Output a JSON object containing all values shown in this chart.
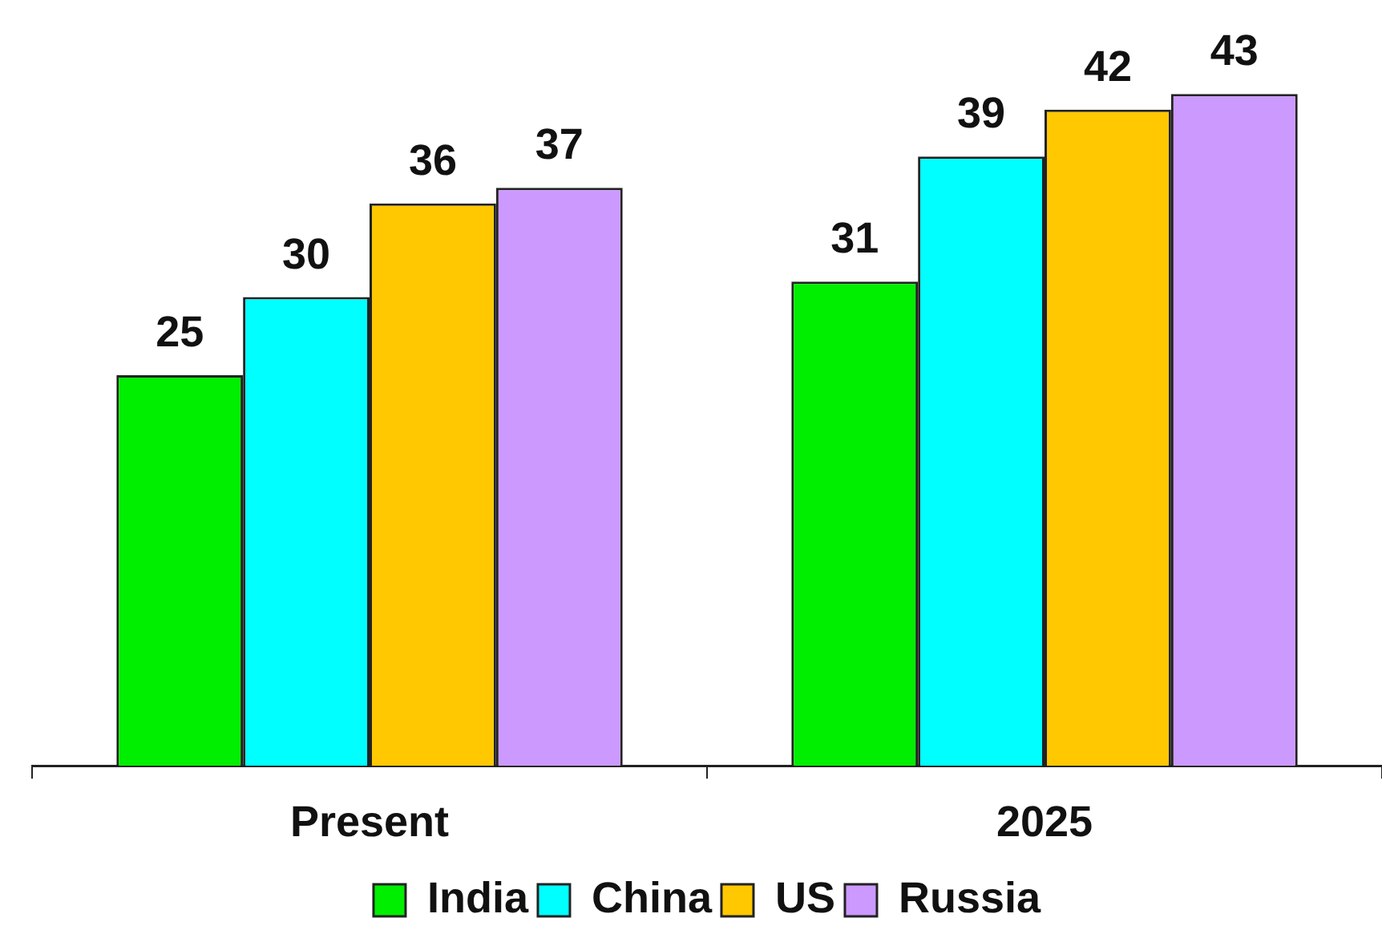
{
  "chart_data": {
    "type": "bar",
    "categories": [
      "Present",
      "2025"
    ],
    "series": [
      {
        "name": "India",
        "color": "#00ee00",
        "values": [
          25,
          31
        ]
      },
      {
        "name": "China",
        "color": "#00ffff",
        "values": [
          30,
          39
        ]
      },
      {
        "name": "US",
        "color": "#ffc800",
        "values": [
          36,
          42
        ]
      },
      {
        "name": "Russia",
        "color": "#cc99ff",
        "values": [
          37,
          43
        ]
      }
    ],
    "data_labels": true,
    "legend": "bottom",
    "grid": false
  }
}
